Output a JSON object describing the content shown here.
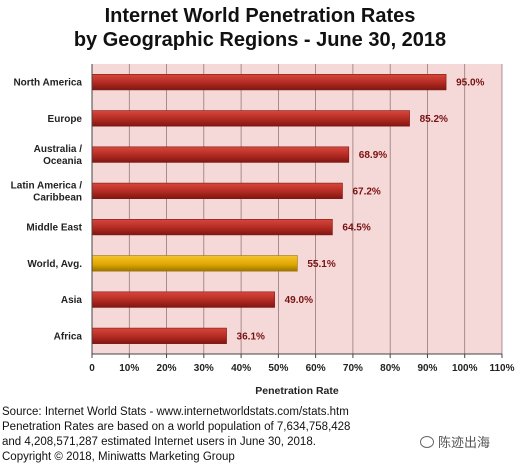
{
  "chart_data": {
    "type": "bar",
    "orientation": "horizontal",
    "title_lines": [
      "Internet World Penetration Rates",
      "by Geographic Regions - June 30, 2018"
    ],
    "categories": [
      [
        "North America"
      ],
      [
        "Europe"
      ],
      [
        "Australia /",
        "Oceania"
      ],
      [
        "Latin America /",
        "Caribbean"
      ],
      [
        "Middle East"
      ],
      [
        "World, Avg."
      ],
      [
        "Asia"
      ],
      [
        "Africa"
      ]
    ],
    "values": [
      95.0,
      85.2,
      68.9,
      67.2,
      64.5,
      55.1,
      49.0,
      36.1
    ],
    "value_labels": [
      "95.0%",
      "85.2%",
      "68.9%",
      "67.2%",
      "64.5%",
      "55.1%",
      "49.0%",
      "36.1%"
    ],
    "xlabel": "Penetration Rate",
    "xlim": [
      0,
      110
    ],
    "xticks": [
      "0",
      "10%",
      "20%",
      "30%",
      "40%",
      "50%",
      "60%",
      "70%",
      "80%",
      "90%",
      "100%",
      "110%"
    ],
    "grid": true,
    "colors": {
      "bar": "#b22a22",
      "bar_dark": "#7e1612",
      "highlight": "#e0a800",
      "highlight_dark": "#9c7400",
      "plot_bg": "#f5d9d9",
      "grid": "#8a6a6a",
      "value_label": "#7a1010"
    },
    "highlight_category": "World, Avg."
  },
  "source_lines": [
    "Source: Internet World Stats - www.internetworldstats.com/stats.htm",
    "Penetration Rates are based on a world population of 7,634,758,428",
    "and 4,208,571,287 estimated Internet users in June 30, 2018.",
    "Copyright © 2018, Miniwatts Marketing Group"
  ],
  "watermark": "陈迹出海"
}
